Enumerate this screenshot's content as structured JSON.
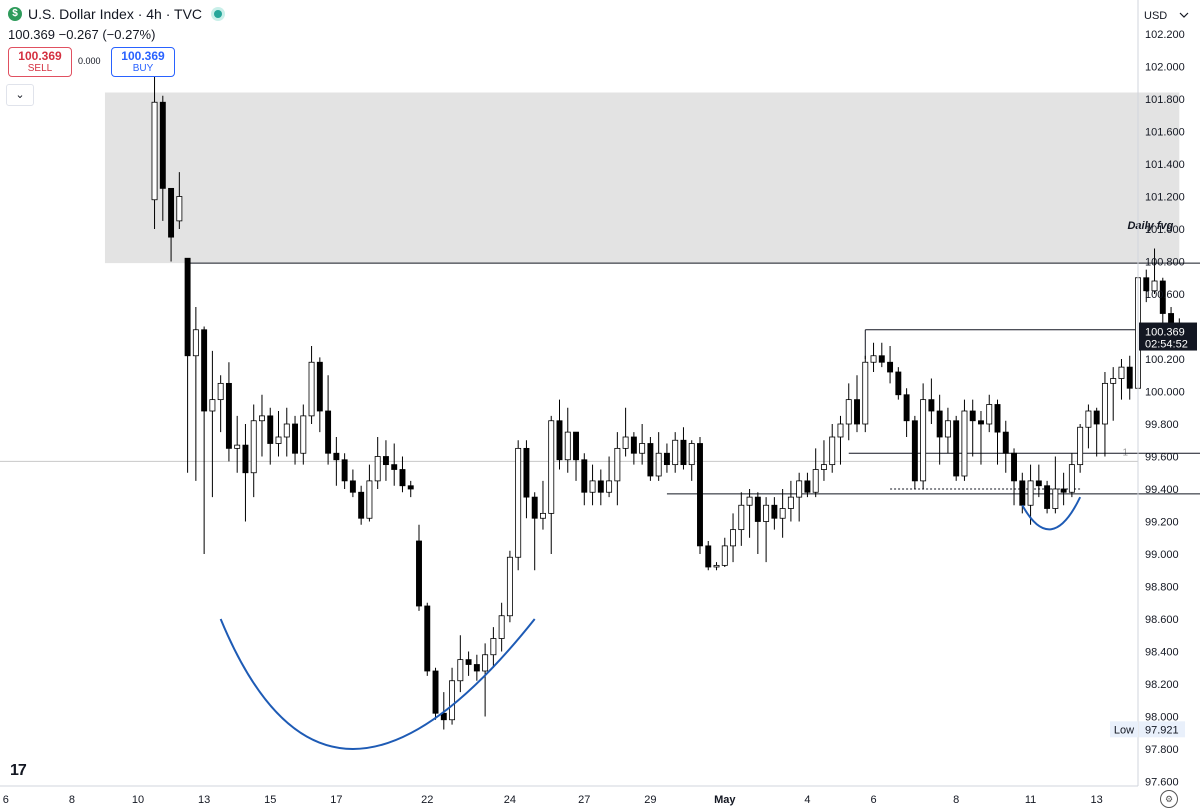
{
  "header": {
    "logo_icon": "$",
    "symbol_title": "U.S. Dollar Index · 4h · TVC",
    "quote_line": "100.369  −0.267 (−0.27%)"
  },
  "trade": {
    "sell_price": "100.369",
    "sell_label": "SELL",
    "buy_price": "100.369",
    "buy_label": "BUY",
    "spread": "0.000"
  },
  "collapse_icon": "⌄",
  "watermark": "17",
  "settings_icon": "gear-icon",
  "chart_data": {
    "type": "candlestick",
    "currency": "USD",
    "ylim": [
      97.6,
      102.3
    ],
    "y_ticks": [
      "102.200",
      "102.000",
      "101.800",
      "101.600",
      "101.400",
      "101.200",
      "101.000",
      "100.800",
      "100.600",
      "100.400",
      "100.200",
      "100.000",
      "99.800",
      "99.600",
      "99.400",
      "99.200",
      "99.000",
      "98.800",
      "98.600",
      "98.400",
      "98.200",
      "98.000",
      "97.800",
      "97.600"
    ],
    "x_ticks": [
      {
        "label": "6",
        "i": -18
      },
      {
        "label": "8",
        "i": -10
      },
      {
        "label": "10",
        "i": -2
      },
      {
        "label": "13",
        "i": 6
      },
      {
        "label": "15",
        "i": 14
      },
      {
        "label": "17",
        "i": 22
      },
      {
        "label": "22",
        "i": 33
      },
      {
        "label": "24",
        "i": 43
      },
      {
        "label": "27",
        "i": 52
      },
      {
        "label": "29",
        "i": 60
      },
      {
        "label": "May",
        "i": 69
      },
      {
        "label": "4",
        "i": 79
      },
      {
        "label": "6",
        "i": 87
      },
      {
        "label": "8",
        "i": 97
      },
      {
        "label": "11",
        "i": 106
      },
      {
        "label": "13",
        "i": 114
      }
    ],
    "x_range": [
      -18.7,
      119.0
    ],
    "candles": [
      [
        0,
        101.18,
        101.78,
        101.96,
        101.0
      ],
      [
        1,
        101.78,
        101.25,
        101.82,
        101.05
      ],
      [
        2,
        101.25,
        100.95,
        101.05,
        100.8
      ],
      [
        3,
        101.05,
        101.2,
        101.35,
        101.0
      ],
      [
        4,
        100.82,
        100.22,
        100.82,
        99.5
      ],
      [
        5,
        100.22,
        100.38,
        100.52,
        99.45
      ],
      [
        6,
        100.38,
        99.88,
        100.4,
        99.0
      ],
      [
        7,
        99.88,
        99.95,
        100.25,
        99.35
      ],
      [
        8,
        99.95,
        100.05,
        100.1,
        99.75
      ],
      [
        9,
        100.05,
        99.65,
        100.18,
        99.57
      ],
      [
        10,
        99.65,
        99.67,
        99.85,
        99.5
      ],
      [
        11,
        99.67,
        99.5,
        99.8,
        99.2
      ],
      [
        12,
        99.5,
        99.82,
        99.92,
        99.35
      ],
      [
        13,
        99.82,
        99.85,
        99.98,
        99.6
      ],
      [
        14,
        99.85,
        99.68,
        99.9,
        99.55
      ],
      [
        15,
        99.68,
        99.72,
        99.88,
        99.6
      ],
      [
        16,
        99.72,
        99.8,
        99.9,
        99.6
      ],
      [
        17,
        99.8,
        99.62,
        99.85,
        99.55
      ],
      [
        18,
        99.62,
        99.85,
        99.92,
        99.55
      ],
      [
        19,
        99.85,
        100.18,
        100.28,
        99.8
      ],
      [
        20,
        100.18,
        99.88,
        100.21,
        99.75
      ],
      [
        21,
        99.88,
        99.62,
        100.1,
        99.55
      ],
      [
        22,
        99.62,
        99.58,
        99.72,
        99.42
      ],
      [
        23,
        99.58,
        99.45,
        99.62,
        99.4
      ],
      [
        24,
        99.45,
        99.38,
        99.52,
        99.35
      ],
      [
        25,
        99.38,
        99.22,
        99.42,
        99.18
      ],
      [
        26,
        99.22,
        99.45,
        99.55,
        99.2
      ],
      [
        27,
        99.45,
        99.6,
        99.72,
        99.4
      ],
      [
        28,
        99.6,
        99.55,
        99.7,
        99.45
      ],
      [
        29,
        99.55,
        99.52,
        99.68,
        99.42
      ],
      [
        30,
        99.52,
        99.42,
        99.6,
        99.38
      ],
      [
        31,
        99.42,
        99.4,
        99.45,
        99.35
      ],
      [
        32,
        99.08,
        98.68,
        99.18,
        98.65
      ],
      [
        33,
        98.68,
        98.28,
        98.7,
        98.25
      ],
      [
        34,
        98.28,
        98.02,
        98.3,
        97.98
      ],
      [
        35,
        98.02,
        97.98,
        98.15,
        97.92
      ],
      [
        36,
        97.98,
        98.22,
        98.3,
        97.95
      ],
      [
        37,
        98.22,
        98.35,
        98.5,
        98.15
      ],
      [
        38,
        98.35,
        98.32,
        98.4,
        98.25
      ],
      [
        39,
        98.32,
        98.28,
        98.38,
        98.22
      ],
      [
        40,
        98.28,
        98.38,
        98.45,
        98.0
      ],
      [
        41,
        98.38,
        98.48,
        98.55,
        98.3
      ],
      [
        42,
        98.48,
        98.62,
        98.7,
        98.4
      ],
      [
        43,
        98.62,
        98.98,
        99.02,
        98.58
      ],
      [
        44,
        98.98,
        99.65,
        99.7,
        98.9
      ],
      [
        45,
        99.65,
        99.35,
        99.7,
        99.22
      ],
      [
        46,
        99.35,
        99.22,
        99.38,
        98.9
      ],
      [
        47,
        99.22,
        99.25,
        99.45,
        99.15
      ],
      [
        48,
        99.25,
        99.82,
        99.85,
        99.0
      ],
      [
        49,
        99.82,
        99.58,
        99.95,
        99.52
      ],
      [
        50,
        99.58,
        99.75,
        99.9,
        99.5
      ],
      [
        51,
        99.75,
        99.58,
        99.62,
        99.45
      ],
      [
        52,
        99.58,
        99.38,
        99.62,
        99.3
      ],
      [
        53,
        99.38,
        99.45,
        99.55,
        99.3
      ],
      [
        54,
        99.45,
        99.38,
        99.52,
        99.3
      ],
      [
        55,
        99.38,
        99.45,
        99.6,
        99.35
      ],
      [
        56,
        99.45,
        99.65,
        99.75,
        99.3
      ],
      [
        57,
        99.65,
        99.72,
        99.9,
        99.6
      ],
      [
        58,
        99.72,
        99.62,
        99.75,
        99.55
      ],
      [
        59,
        99.62,
        99.68,
        99.8,
        99.55
      ],
      [
        60,
        99.68,
        99.48,
        99.72,
        99.45
      ],
      [
        61,
        99.48,
        99.62,
        99.75,
        99.45
      ],
      [
        62,
        99.62,
        99.55,
        99.68,
        99.5
      ],
      [
        63,
        99.55,
        99.7,
        99.75,
        99.5
      ],
      [
        64,
        99.7,
        99.55,
        99.78,
        99.52
      ],
      [
        65,
        99.55,
        99.68,
        99.7,
        99.45
      ],
      [
        66,
        99.68,
        99.05,
        99.72,
        99.0
      ],
      [
        67,
        99.05,
        98.92,
        99.08,
        98.9
      ],
      [
        68,
        98.92,
        98.93,
        98.95,
        98.9
      ],
      [
        69,
        98.93,
        99.05,
        99.1,
        98.92
      ],
      [
        70,
        99.05,
        99.15,
        99.25,
        98.95
      ],
      [
        71,
        99.15,
        99.3,
        99.38,
        99.05
      ],
      [
        72,
        99.3,
        99.35,
        99.4,
        99.1
      ],
      [
        73,
        99.35,
        99.2,
        99.38,
        99.0
      ],
      [
        74,
        99.2,
        99.3,
        99.35,
        98.95
      ],
      [
        75,
        99.3,
        99.22,
        99.35,
        99.15
      ],
      [
        76,
        99.22,
        99.28,
        99.4,
        99.1
      ],
      [
        77,
        99.28,
        99.35,
        99.45,
        99.2
      ],
      [
        78,
        99.35,
        99.45,
        99.5,
        99.2
      ],
      [
        79,
        99.45,
        99.38,
        99.5,
        99.35
      ],
      [
        80,
        99.38,
        99.52,
        99.65,
        99.35
      ],
      [
        81,
        99.52,
        99.55,
        99.7,
        99.45
      ],
      [
        82,
        99.55,
        99.72,
        99.8,
        99.5
      ],
      [
        83,
        99.72,
        99.8,
        99.85,
        99.55
      ],
      [
        84,
        99.8,
        99.95,
        100.05,
        99.7
      ],
      [
        85,
        99.95,
        99.8,
        100.1,
        99.75
      ],
      [
        86,
        99.8,
        100.18,
        100.22,
        99.75
      ],
      [
        87,
        100.18,
        100.22,
        100.3,
        100.12
      ],
      [
        88,
        100.22,
        100.18,
        100.3,
        100.15
      ],
      [
        89,
        100.18,
        100.12,
        100.28,
        100.05
      ],
      [
        90,
        100.12,
        99.98,
        100.15,
        99.95
      ],
      [
        91,
        99.98,
        99.82,
        100.02,
        99.72
      ],
      [
        92,
        99.82,
        99.45,
        99.85,
        99.4
      ],
      [
        93,
        99.45,
        99.95,
        100.05,
        99.4
      ],
      [
        94,
        99.95,
        99.88,
        100.08,
        99.8
      ],
      [
        95,
        99.88,
        99.72,
        99.98,
        99.55
      ],
      [
        96,
        99.72,
        99.82,
        99.9,
        99.62
      ],
      [
        97,
        99.82,
        99.48,
        99.85,
        99.45
      ],
      [
        98,
        99.48,
        99.88,
        99.95,
        99.45
      ],
      [
        99,
        99.88,
        99.82,
        99.95,
        99.6
      ],
      [
        100,
        99.82,
        99.8,
        99.88,
        99.55
      ],
      [
        101,
        99.8,
        99.92,
        99.98,
        99.75
      ],
      [
        102,
        99.92,
        99.75,
        99.95,
        99.55
      ],
      [
        103,
        99.75,
        99.62,
        99.82,
        99.5
      ],
      [
        104,
        99.62,
        99.45,
        99.65,
        99.3
      ],
      [
        105,
        99.45,
        99.3,
        99.5,
        99.25
      ],
      [
        106,
        99.3,
        99.45,
        99.55,
        99.18
      ],
      [
        107,
        99.45,
        99.42,
        99.55,
        99.35
      ],
      [
        108,
        99.42,
        99.28,
        99.45,
        99.25
      ],
      [
        109,
        99.28,
        99.4,
        99.6,
        99.25
      ],
      [
        110,
        99.4,
        99.38,
        99.5,
        99.3
      ],
      [
        111,
        99.38,
        99.55,
        99.62,
        99.35
      ],
      [
        112,
        99.55,
        99.78,
        99.8,
        99.5
      ],
      [
        113,
        99.78,
        99.88,
        99.92,
        99.65
      ],
      [
        114,
        99.88,
        99.8,
        99.9,
        99.6
      ],
      [
        115,
        99.8,
        100.05,
        100.12,
        99.6
      ],
      [
        116,
        100.05,
        100.08,
        100.15,
        99.82
      ],
      [
        117,
        100.08,
        100.15,
        100.2,
        99.95
      ],
      [
        118,
        100.15,
        100.02,
        100.22,
        99.95
      ],
      [
        119,
        100.02,
        100.7,
        100.78,
        100.0
      ],
      [
        120,
        100.7,
        100.62,
        100.75,
        100.55
      ],
      [
        121,
        100.62,
        100.68,
        100.88,
        100.6
      ],
      [
        122,
        100.68,
        100.48,
        100.7,
        100.42
      ],
      [
        123,
        100.48,
        100.42,
        100.52,
        100.38
      ],
      [
        124,
        100.42,
        100.37,
        100.45,
        100.3
      ]
    ],
    "fvg_zone": {
      "label": "Daily fvg",
      "from_i": -6,
      "to_i": 124,
      "y_top": 101.84,
      "y_bottom": 100.79
    },
    "lines": [
      {
        "name": "fvg-base-line",
        "from_i": 4,
        "to_i": 130,
        "y": 100.79
      },
      {
        "name": "high-level-line",
        "from_i": 86,
        "to_i": 122,
        "y": 100.38
      },
      {
        "name": "mid-level-line",
        "from_i": 84,
        "to_i": 127,
        "y": 99.62
      },
      {
        "name": "low-level-line",
        "from_i": 62,
        "to_i": 127,
        "y": 99.37
      },
      {
        "name": "dotted-level-line",
        "from_i": 89,
        "to_i": 112,
        "y": 99.4,
        "dotted": true
      }
    ],
    "crosshair_y": 99.57,
    "crosshair_label": "1",
    "last_price": {
      "value": "100.369",
      "countdown": "02:54:52",
      "y": 100.369
    },
    "low_label": {
      "label": "Low",
      "value": "97.921",
      "y": 97.921
    },
    "colors": {
      "up_fill": "#ffffff",
      "down_fill": "#000000",
      "wick": "#000000",
      "zone": "#e3e3e3",
      "arc": "#1e5bb5"
    }
  }
}
